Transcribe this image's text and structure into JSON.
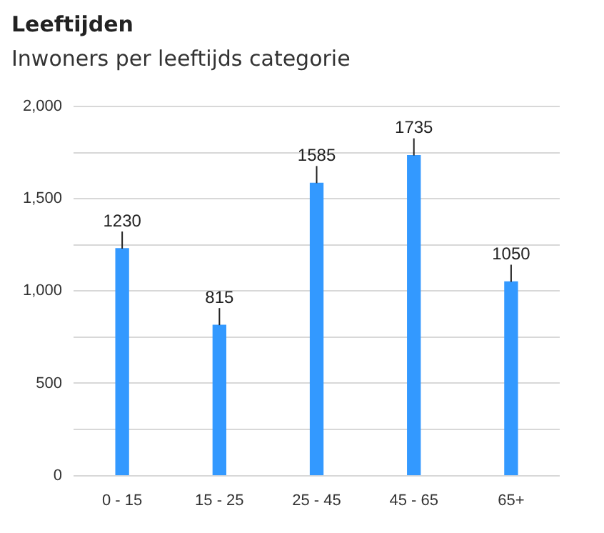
{
  "chart_data": {
    "type": "bar",
    "title": "Leeftijden",
    "subtitle": "Inwoners per leeftijds categorie",
    "categories": [
      "0 - 15",
      "15 - 25",
      "25 - 45",
      "45 - 65",
      "65+"
    ],
    "values": [
      1230,
      815,
      1585,
      1735,
      1050
    ],
    "color": "#3399ff",
    "ylim": [
      0,
      2000
    ],
    "yticks": [
      0,
      {
        "value": 250,
        "label": null
      },
      500,
      {
        "value": 750,
        "label": null
      },
      {
        "value": 1000,
        "label": "1,000"
      },
      {
        "value": 1250,
        "label": null
      },
      {
        "value": 1500,
        "label": "1,500"
      },
      {
        "value": 1750,
        "label": null
      },
      {
        "value": 2000,
        "label": "2,000"
      }
    ],
    "grid": "y",
    "data_labels": true
  }
}
